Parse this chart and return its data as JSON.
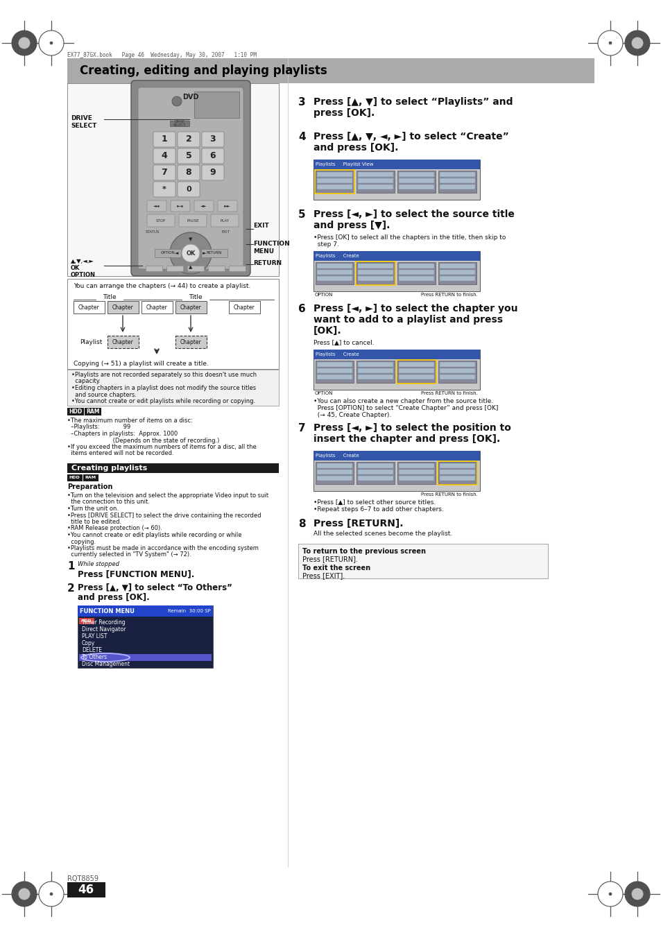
{
  "page_bg": "#ffffff",
  "header_bg": "#aaaaaa",
  "header_text": "Creating, editing and playing playlists",
  "file_info": "EX77_87GX.book   Page 46  Wednesday, May 30, 2007   1:10 PM",
  "section_bar_bg": "#1a1a1a",
  "creating_playlists_title": "Creating playlists",
  "page_number": "46",
  "rqt_number": "RQT8859"
}
